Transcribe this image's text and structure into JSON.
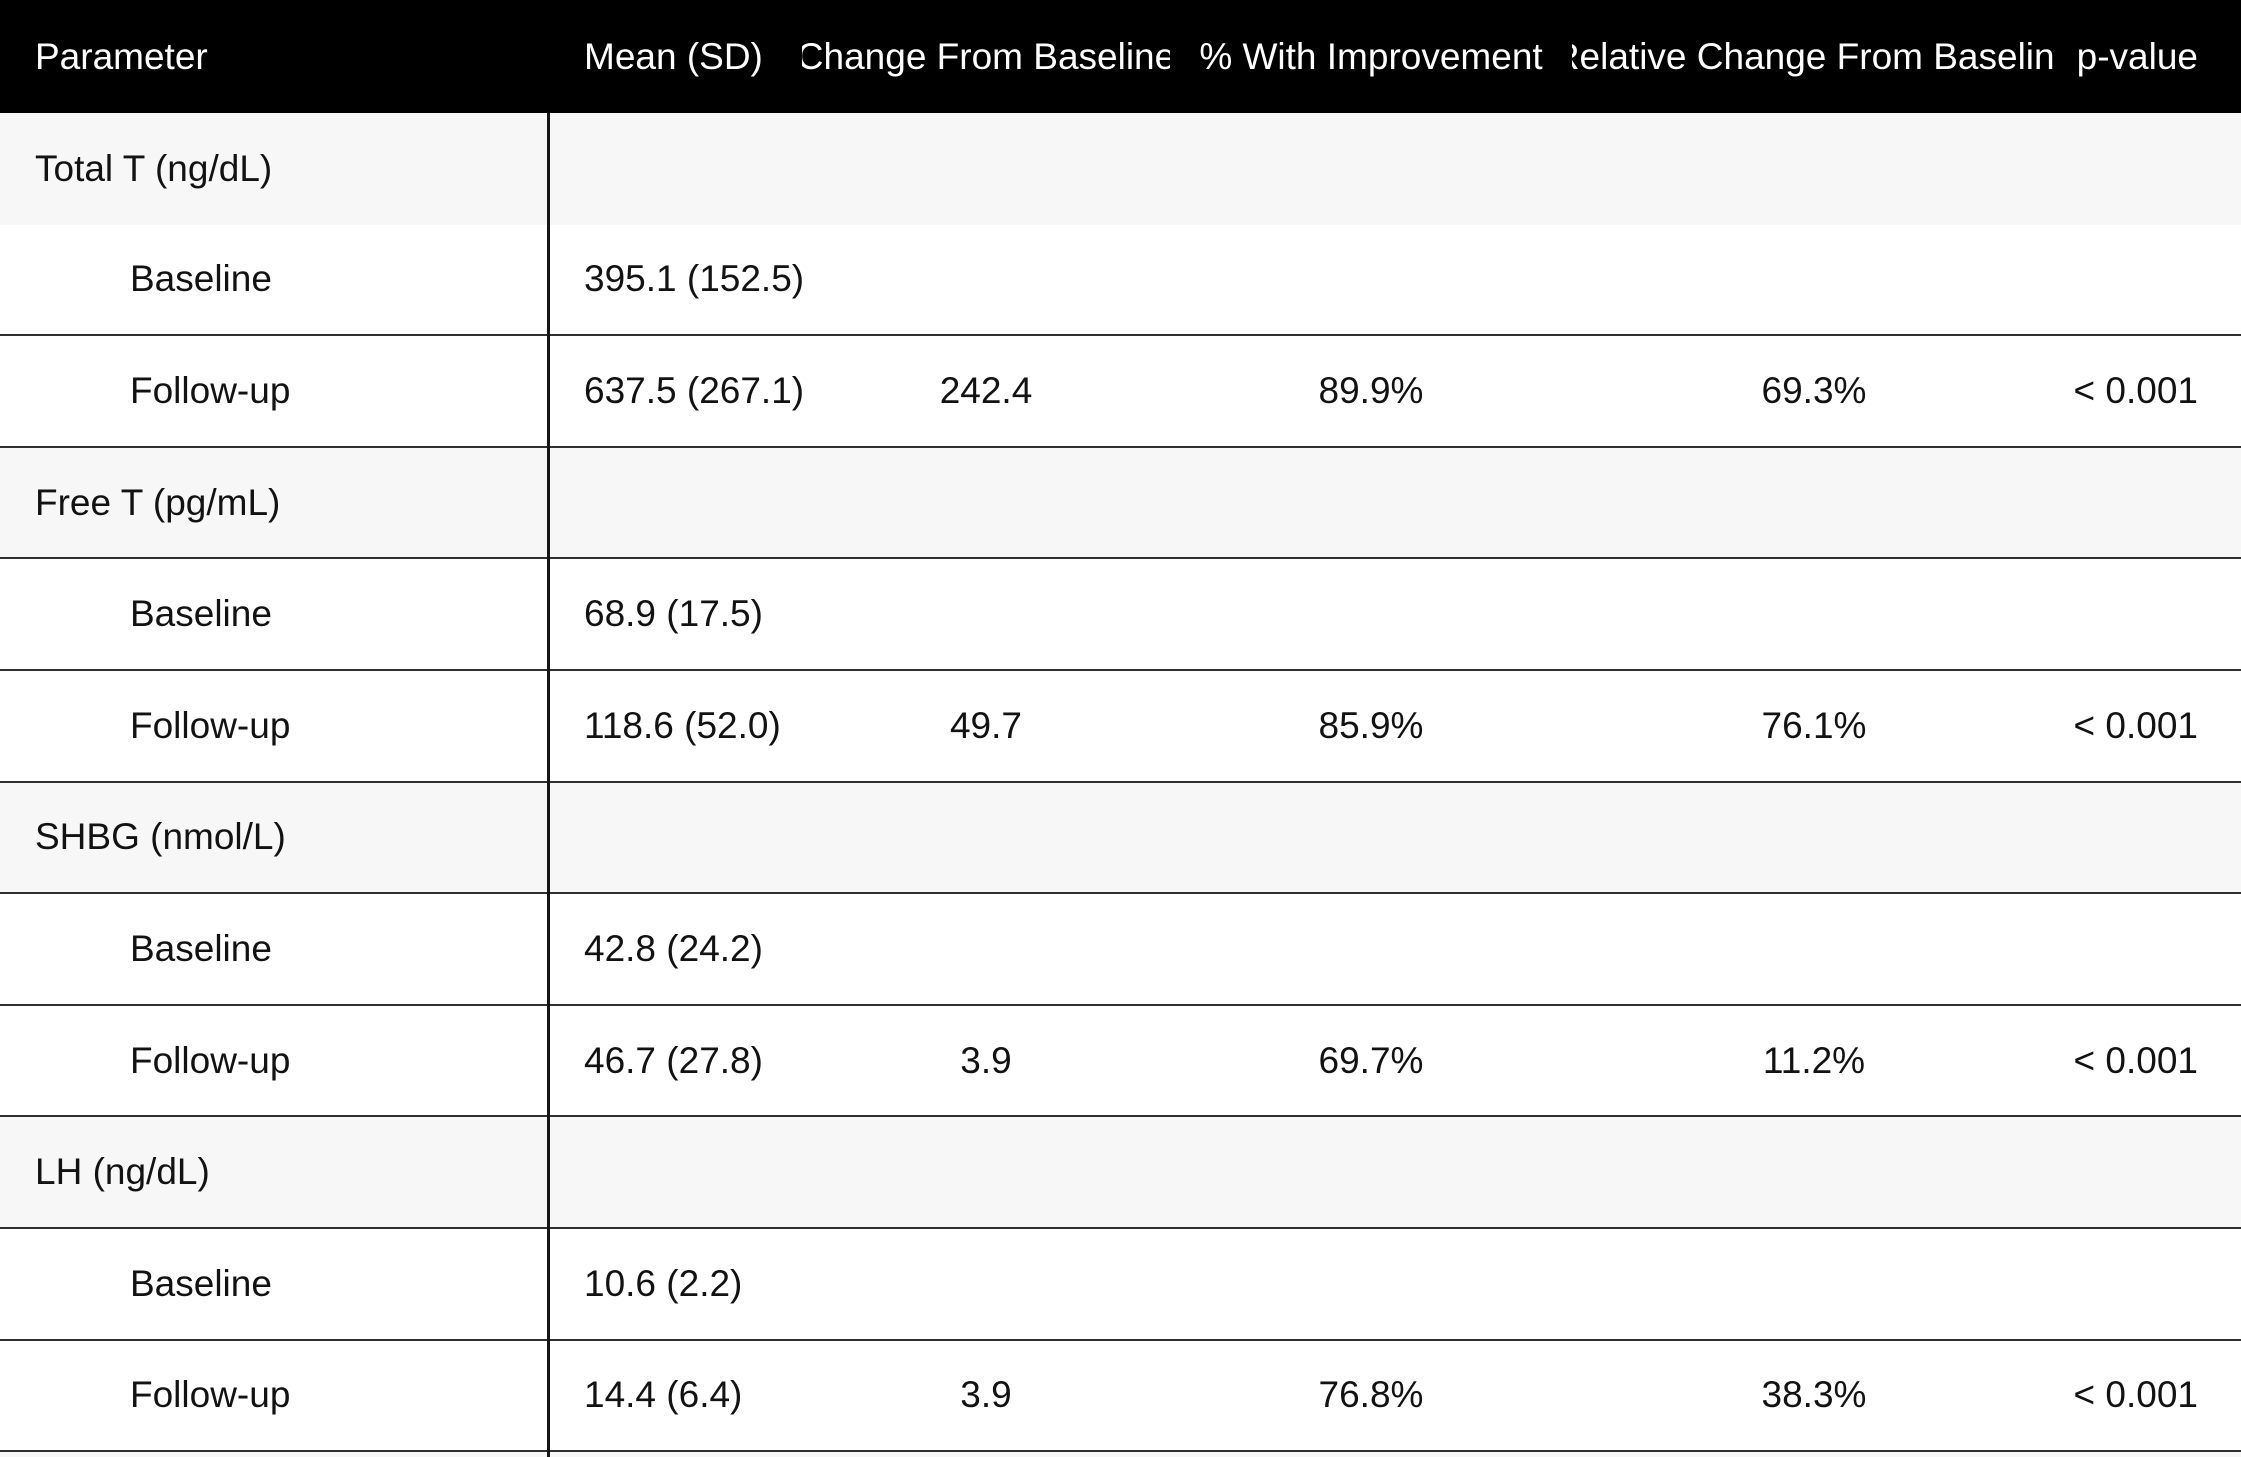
{
  "colors": {
    "header_bg": "#000000",
    "header_text": "#ffffff",
    "section_row_bg": "#f7f7f7",
    "row_bg": "#ffffff",
    "grid_line": "#2f2f2f",
    "column_divider": "#161616",
    "body_text": "#121212"
  },
  "table": {
    "columns": [
      "Parameter",
      "Mean (SD)",
      "Change From Baseline",
      "% With Improvement",
      "Relative Change From Baseline",
      "p-value"
    ],
    "rows": [
      {
        "type": "section",
        "cells": [
          "Total T (ng/dL)",
          "",
          "",
          "",
          "",
          ""
        ]
      },
      {
        "type": "data",
        "cells": [
          "Baseline",
          "395.1 (152.5)",
          "",
          "",
          "",
          ""
        ]
      },
      {
        "type": "data",
        "cells": [
          "Follow-up",
          "637.5 (267.1)",
          "242.4",
          "89.9%",
          "69.3%",
          "< 0.001"
        ]
      },
      {
        "type": "section",
        "cells": [
          "Free T (pg/mL)",
          "",
          "",
          "",
          "",
          ""
        ]
      },
      {
        "type": "data",
        "cells": [
          "Baseline",
          "68.9 (17.5)",
          "",
          "",
          "",
          ""
        ]
      },
      {
        "type": "data",
        "cells": [
          "Follow-up",
          "118.6 (52.0)",
          "49.7",
          "85.9%",
          "76.1%",
          "< 0.001"
        ]
      },
      {
        "type": "section",
        "cells": [
          "SHBG (nmol/L)",
          "",
          "",
          "",
          "",
          ""
        ]
      },
      {
        "type": "data",
        "cells": [
          "Baseline",
          "42.8 (24.2)",
          "",
          "",
          "",
          ""
        ]
      },
      {
        "type": "data",
        "cells": [
          "Follow-up",
          "46.7 (27.8)",
          "3.9",
          "69.7%",
          "11.2%",
          "< 0.001"
        ]
      },
      {
        "type": "section",
        "cells": [
          "LH (ng/dL)",
          "",
          "",
          "",
          "",
          ""
        ]
      },
      {
        "type": "data",
        "cells": [
          "Baseline",
          "10.6 (2.2)",
          "",
          "",
          "",
          ""
        ]
      },
      {
        "type": "data",
        "cells": [
          "Follow-up",
          "14.4 (6.4)",
          "3.9",
          "76.8%",
          "38.3%",
          "< 0.001"
        ]
      }
    ]
  }
}
